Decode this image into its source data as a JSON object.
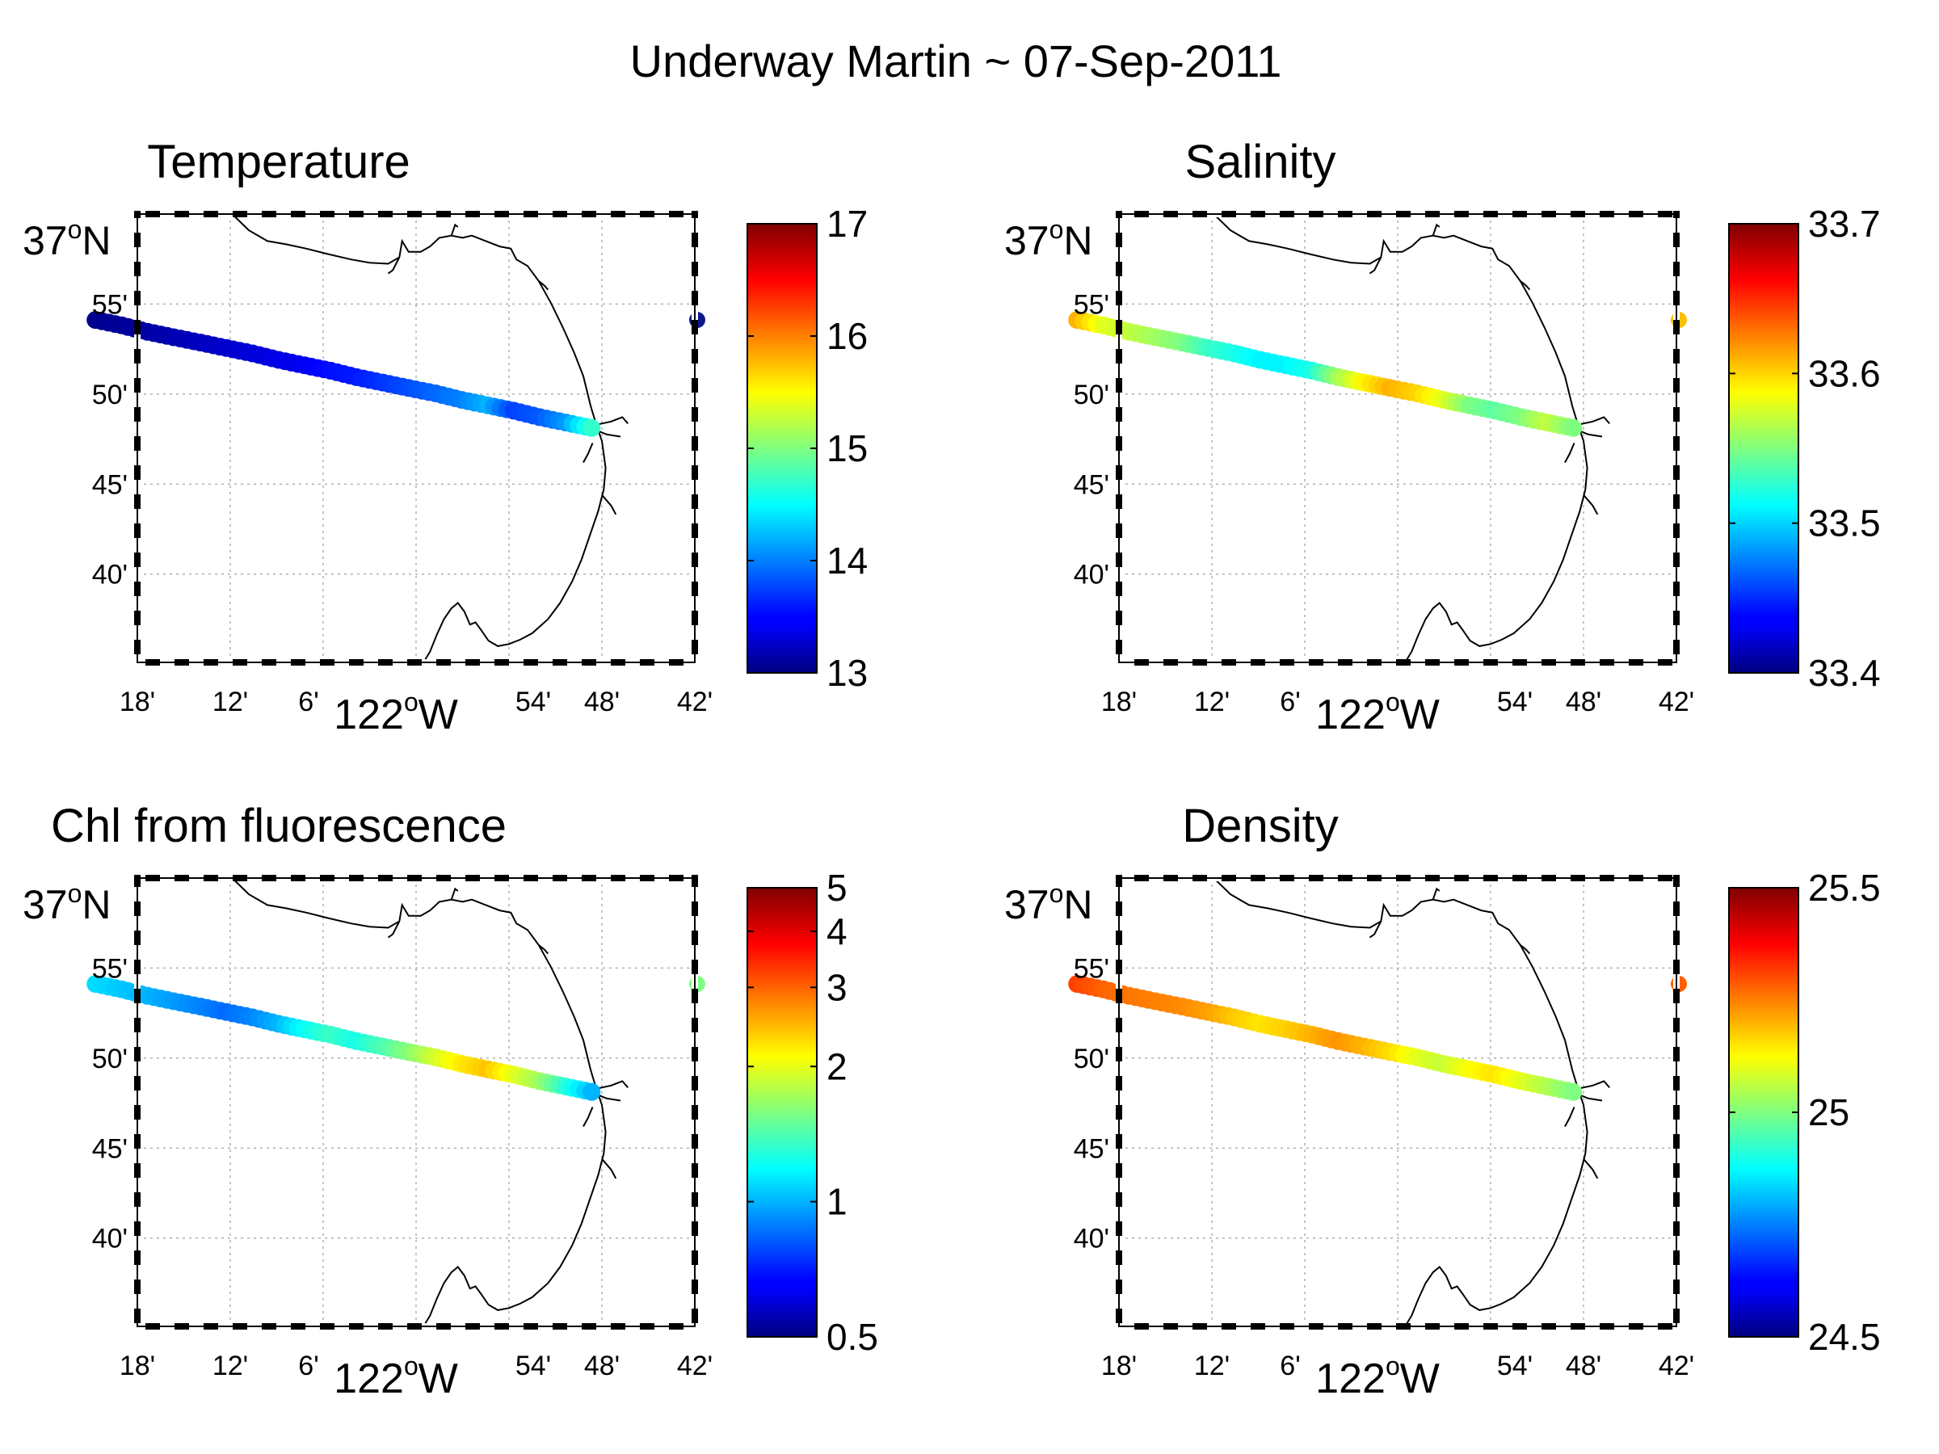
{
  "figure": {
    "title": "Underway Martin ~ 07-Sep-2011"
  },
  "axes": {
    "lat_main": "37",
    "lat_main_deg": "o",
    "lat_main_suffix": "N",
    "lat_ticks": [
      "55'",
      "50'",
      "45'",
      "40'"
    ],
    "lon_ticks": [
      "18'",
      "12'",
      "6'",
      "54'",
      "48'",
      "42'"
    ],
    "lon_main": "122",
    "lon_main_deg": "o",
    "lon_main_suffix": "W"
  },
  "panels": [
    {
      "id": "temperature",
      "title": "Temperature",
      "colorbar": {
        "min": 13,
        "max": 17,
        "log": false,
        "ticks": [
          "17",
          "16",
          "15",
          "14",
          "13"
        ]
      },
      "reference_color": "#0a1a8c",
      "track": [
        {
          "lon": -122.345,
          "lat": 36.902,
          "value": 13.05
        },
        {
          "lon": -122.317,
          "lat": 36.897,
          "value": 13.1
        },
        {
          "lon": -122.289,
          "lat": 36.891,
          "value": 13.15
        },
        {
          "lon": -122.261,
          "lat": 36.886,
          "value": 13.2
        },
        {
          "lon": -122.232,
          "lat": 36.881,
          "value": 13.25
        },
        {
          "lon": -122.204,
          "lat": 36.876,
          "value": 13.3
        },
        {
          "lon": -122.176,
          "lat": 36.871,
          "value": 13.35
        },
        {
          "lon": -122.148,
          "lat": 36.865,
          "value": 13.4
        },
        {
          "lon": -122.12,
          "lat": 36.86,
          "value": 13.45
        },
        {
          "lon": -122.092,
          "lat": 36.855,
          "value": 13.55
        },
        {
          "lon": -122.064,
          "lat": 36.849,
          "value": 13.6
        },
        {
          "lon": -122.036,
          "lat": 36.844,
          "value": 13.7
        },
        {
          "lon": -122.008,
          "lat": 36.839,
          "value": 13.8
        },
        {
          "lon": -121.979,
          "lat": 36.834,
          "value": 13.9
        },
        {
          "lon": -121.951,
          "lat": 36.828,
          "value": 14.0
        },
        {
          "lon": -121.923,
          "lat": 36.823,
          "value": 14.2
        },
        {
          "lon": -121.895,
          "lat": 36.818,
          "value": 13.75
        },
        {
          "lon": -121.867,
          "lat": 36.812,
          "value": 13.85
        },
        {
          "lon": -121.839,
          "lat": 36.807,
          "value": 14.1
        },
        {
          "lon": -121.811,
          "lat": 36.802,
          "value": 14.7
        }
      ]
    },
    {
      "id": "salinity",
      "title": "Salinity",
      "colorbar": {
        "min": 33.4,
        "max": 33.7,
        "log": false,
        "ticks": [
          "33.7",
          "33.6",
          "33.5",
          "33.4"
        ]
      },
      "reference_color": "#ffbf00",
      "track": [
        {
          "lon": -122.345,
          "lat": 36.902,
          "value": 33.61
        },
        {
          "lon": -122.317,
          "lat": 36.897,
          "value": 33.58
        },
        {
          "lon": -122.289,
          "lat": 36.891,
          "value": 33.57
        },
        {
          "lon": -122.261,
          "lat": 36.886,
          "value": 33.56
        },
        {
          "lon": -122.232,
          "lat": 36.881,
          "value": 33.55
        },
        {
          "lon": -122.204,
          "lat": 36.876,
          "value": 33.53
        },
        {
          "lon": -122.176,
          "lat": 36.871,
          "value": 33.52
        },
        {
          "lon": -122.148,
          "lat": 36.865,
          "value": 33.51
        },
        {
          "lon": -122.12,
          "lat": 36.86,
          "value": 33.51
        },
        {
          "lon": -122.092,
          "lat": 36.855,
          "value": 33.52
        },
        {
          "lon": -122.064,
          "lat": 36.849,
          "value": 33.56
        },
        {
          "lon": -122.036,
          "lat": 36.844,
          "value": 33.59
        },
        {
          "lon": -122.008,
          "lat": 36.839,
          "value": 33.61
        },
        {
          "lon": -121.979,
          "lat": 36.834,
          "value": 33.6
        },
        {
          "lon": -121.951,
          "lat": 36.828,
          "value": 33.58
        },
        {
          "lon": -121.923,
          "lat": 36.823,
          "value": 33.55
        },
        {
          "lon": -121.895,
          "lat": 36.818,
          "value": 33.54
        },
        {
          "lon": -121.867,
          "lat": 36.812,
          "value": 33.55
        },
        {
          "lon": -121.839,
          "lat": 36.807,
          "value": 33.57
        },
        {
          "lon": -121.811,
          "lat": 36.802,
          "value": 33.55
        }
      ]
    },
    {
      "id": "chl",
      "title": "Chl from fluorescence",
      "colorbar": {
        "min": 0.5,
        "max": 5,
        "log": true,
        "ticks": [
          "5",
          "4",
          "3",
          "2",
          "1",
          "0.5"
        ]
      },
      "reference_color": "#7fff7f",
      "track": [
        {
          "lon": -122.345,
          "lat": 36.902,
          "value": 1.1
        },
        {
          "lon": -122.317,
          "lat": 36.897,
          "value": 1.05
        },
        {
          "lon": -122.289,
          "lat": 36.891,
          "value": 1.0
        },
        {
          "lon": -122.261,
          "lat": 36.886,
          "value": 0.95
        },
        {
          "lon": -122.232,
          "lat": 36.881,
          "value": 0.9
        },
        {
          "lon": -122.204,
          "lat": 36.876,
          "value": 0.85
        },
        {
          "lon": -122.176,
          "lat": 36.871,
          "value": 0.9
        },
        {
          "lon": -122.148,
          "lat": 36.865,
          "value": 1.0
        },
        {
          "lon": -122.12,
          "lat": 36.86,
          "value": 1.2
        },
        {
          "lon": -122.092,
          "lat": 36.855,
          "value": 1.35
        },
        {
          "lon": -122.064,
          "lat": 36.849,
          "value": 1.25
        },
        {
          "lon": -122.036,
          "lat": 36.844,
          "value": 1.4
        },
        {
          "lon": -122.008,
          "lat": 36.839,
          "value": 1.6
        },
        {
          "lon": -121.979,
          "lat": 36.834,
          "value": 1.9
        },
        {
          "lon": -121.951,
          "lat": 36.828,
          "value": 2.2
        },
        {
          "lon": -121.923,
          "lat": 36.823,
          "value": 2.4
        },
        {
          "lon": -121.895,
          "lat": 36.818,
          "value": 2.0
        },
        {
          "lon": -121.867,
          "lat": 36.812,
          "value": 1.7
        },
        {
          "lon": -121.839,
          "lat": 36.807,
          "value": 1.3
        },
        {
          "lon": -121.811,
          "lat": 36.802,
          "value": 1.0
        }
      ]
    },
    {
      "id": "density",
      "title": "Density",
      "colorbar": {
        "min": 24.5,
        "max": 25.5,
        "log": false,
        "ticks": [
          "25.5",
          "25",
          "24.5"
        ]
      },
      "reference_color": "#ff5f00",
      "track": [
        {
          "lon": -122.345,
          "lat": 36.902,
          "value": 25.31
        },
        {
          "lon": -122.317,
          "lat": 36.897,
          "value": 25.28
        },
        {
          "lon": -122.289,
          "lat": 36.891,
          "value": 25.26
        },
        {
          "lon": -122.261,
          "lat": 36.886,
          "value": 25.25
        },
        {
          "lon": -122.232,
          "lat": 36.881,
          "value": 25.24
        },
        {
          "lon": -122.204,
          "lat": 36.876,
          "value": 25.22
        },
        {
          "lon": -122.176,
          "lat": 36.871,
          "value": 25.18
        },
        {
          "lon": -122.148,
          "lat": 36.865,
          "value": 25.15
        },
        {
          "lon": -122.12,
          "lat": 36.86,
          "value": 25.17
        },
        {
          "lon": -122.092,
          "lat": 36.855,
          "value": 25.2
        },
        {
          "lon": -122.064,
          "lat": 36.849,
          "value": 25.23
        },
        {
          "lon": -122.036,
          "lat": 36.844,
          "value": 25.2
        },
        {
          "lon": -122.008,
          "lat": 36.839,
          "value": 25.16
        },
        {
          "lon": -121.979,
          "lat": 36.834,
          "value": 25.1
        },
        {
          "lon": -121.951,
          "lat": 36.828,
          "value": 25.07
        },
        {
          "lon": -121.923,
          "lat": 36.823,
          "value": 25.12
        },
        {
          "lon": -121.895,
          "lat": 36.818,
          "value": 25.15
        },
        {
          "lon": -121.867,
          "lat": 36.812,
          "value": 25.1
        },
        {
          "lon": -121.839,
          "lat": 36.807,
          "value": 25.05
        },
        {
          "lon": -121.811,
          "lat": 36.802,
          "value": 25.0
        }
      ]
    }
  ]
}
